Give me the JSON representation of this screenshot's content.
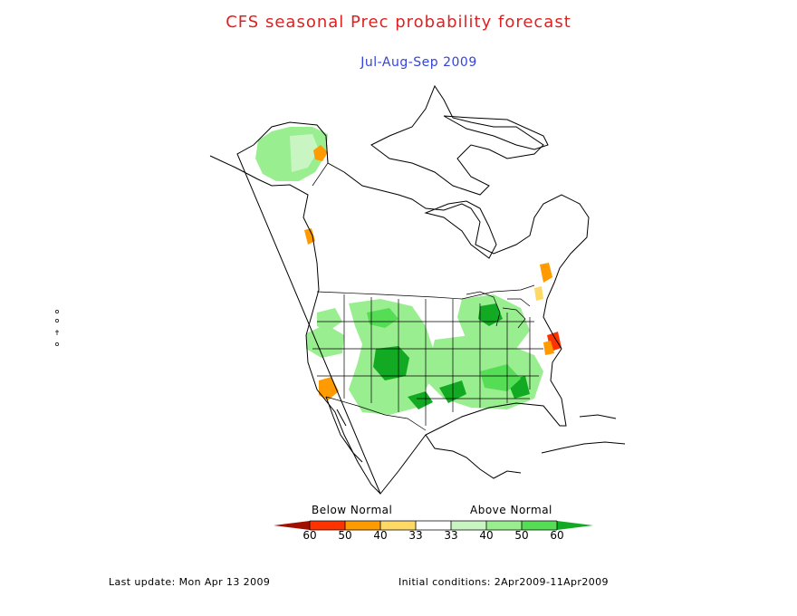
{
  "header": {
    "title": "CFS seasonal Prec probability forecast",
    "subtitle": "Jul-Aug-Sep 2009"
  },
  "legend": {
    "below_label": "Below Normal",
    "above_label": "Above Normal",
    "ticks": [
      "60",
      "50",
      "40",
      "33",
      "33",
      "40",
      "50",
      "60"
    ],
    "colors": {
      "below": [
        "#a01000",
        "#ff3300",
        "#ff9a00",
        "#ffd966"
      ],
      "neutral": "#ffffff",
      "above": [
        "#c9f5c2",
        "#99ee90",
        "#55dd55",
        "#11aa22"
      ]
    }
  },
  "footer": {
    "last_update": "Last update: Mon Apr 13 2009",
    "initial_conditions": "Initial conditions: 2Apr2009-11Apr2009"
  },
  "colors": {
    "title": "#dd2222",
    "subtitle": "#3344dd",
    "outline": "#000000"
  }
}
